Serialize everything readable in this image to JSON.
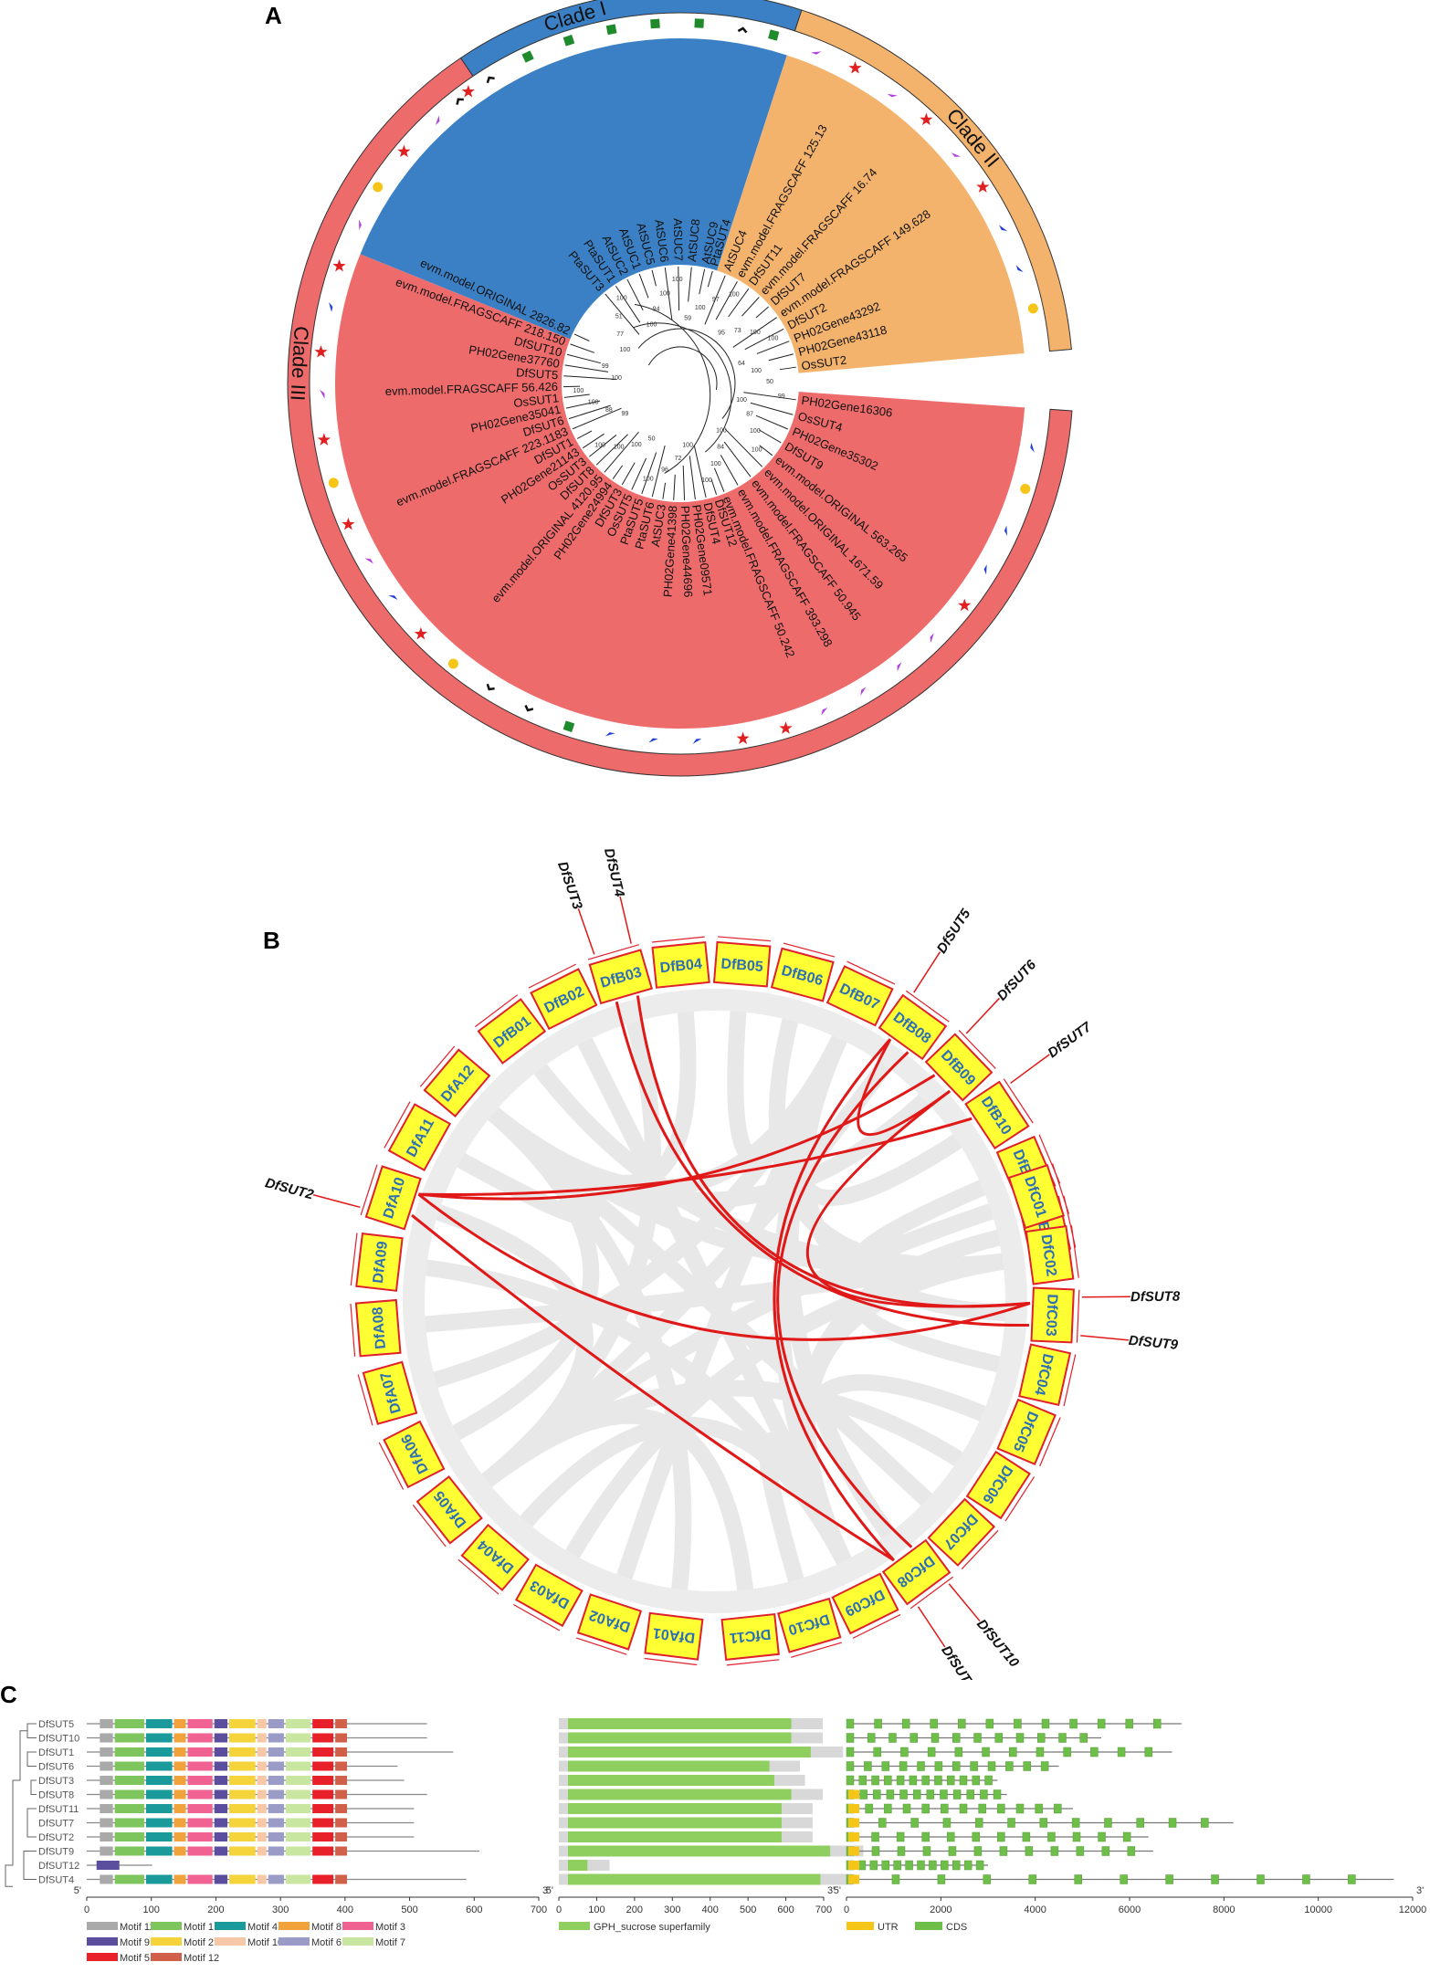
{
  "figure": {
    "panelA": {
      "letter": "A",
      "clades": [
        {
          "name": "Clade I",
          "color": "#3b80c4"
        },
        {
          "name": "Clade II",
          "color": "#f4b36d"
        },
        {
          "name": "Clade III",
          "color": "#ee6b6b"
        }
      ],
      "clade_order_ids": [
        "clade1",
        "clade2",
        "clade3"
      ],
      "leaves_clade1": [
        "AtSUC9",
        "AtSUC8",
        "AtSUC7",
        "AtSUC6",
        "AtSUC5",
        "AtSUC1",
        "AtSUC2",
        "PtaSUT1",
        "PtaSUT3"
      ],
      "leaves_clade2": [
        "PtaSUT4",
        "AtSUC4",
        "evm.model.FRAGSCAFF 125.13",
        "DfSUT11",
        "evm.model.FRAGSCAFF 16.74",
        "DfSUT7",
        "evm.model.FRAGSCAFF 149.628",
        "DfSUT2",
        "PH02Gene43292",
        "PH02Gene43118",
        "OsSUT2"
      ],
      "leaves_clade3_upper": [
        "evm.model.ORIGINAL 2826.82",
        "evm.model.FRAGSCAFF 218.150",
        "DfSUT10",
        "PH02Gene37760",
        "DfSUT5",
        "evm.model.FRAGSCAFF 56.426",
        "OsSUT1",
        "PH02Gene35041",
        "DfSUT6",
        "evm.model.FRAGSCAFF 223.1183",
        "DfSUT1",
        "PH02Gene21143",
        "OsSUT3",
        "DfSUT8",
        "evm.model.ORIGINAL 4120.95",
        "PH02Gene24994",
        "DfSUT3",
        "OsSUT5",
        "PtaSUT5",
        "PtaSUT6",
        "AtSUC3",
        "PH02Gene41398",
        "PH02Gene44696",
        "PH02Gene09571",
        "DfSUT4",
        "DfSUT12"
      ],
      "leaves_clade3_lower": [
        "evm.model.FRAGSCAFF 50.242",
        "evm.model.FRAGSCAFF 393.298",
        "evm.model.FRAGSCAFF 50.945",
        "evm.model.ORIGINAL 1671.59",
        "evm.model.ORIGINAL 563.265",
        "DfSUT9",
        "PH02Gene35302",
        "OsSUT4",
        "PH02Gene16306"
      ],
      "bootstrap_values": [
        "100",
        "77",
        "51",
        "100",
        "100",
        "94",
        "100",
        "100",
        "59",
        "100",
        "97",
        "100",
        "95",
        "73",
        "100",
        "100",
        "64",
        "100",
        "50",
        "99",
        "100",
        "87",
        "100",
        "100",
        "100",
        "84",
        "100",
        "100",
        "100",
        "72",
        "96",
        "100",
        "50",
        "100",
        "100",
        "100",
        "99",
        "88",
        "100",
        "100",
        "100",
        "99"
      ],
      "marker_legend": {
        "circle": "#f5c518",
        "star": "#e02020",
        "triangle_blue": "#1f3fd6",
        "triangle_purple": "#b040e0",
        "square": "#1e8a2c",
        "chevron": "#111111"
      }
    },
    "panelB": {
      "letter": "B",
      "chromosomes": [
        "DfA01",
        "DfA02",
        "DfA03",
        "DfA04",
        "DfA05",
        "DfA06",
        "DfA07",
        "DfA08",
        "DfA09",
        "DfA10",
        "DfA11",
        "DfA12",
        "DfB01",
        "DfB02",
        "DfB03",
        "DfB04",
        "DfB05",
        "DfB06",
        "DfB07",
        "DfB08",
        "DfB09",
        "DfB10",
        "DfB11",
        "DfB12",
        "DfC01",
        "DfC02",
        "DfC03",
        "DfC04",
        "DfC05",
        "DfC06",
        "DfC07",
        "DfC08",
        "DfC09",
        "DfC10",
        "DfC11"
      ],
      "gene_labels": [
        {
          "name": "DfSUT3",
          "chr": "DfB03"
        },
        {
          "name": "DfSUT4",
          "chr": "DfB03"
        },
        {
          "name": "DfSUT5",
          "chr": "DfB08"
        },
        {
          "name": "DfSUT6",
          "chr": "DfB09"
        },
        {
          "name": "DfSUT7",
          "chr": "DfB10"
        },
        {
          "name": "DfSUT2",
          "chr": "DfA10"
        },
        {
          "name": "DfSUT8",
          "chr": "DfC03"
        },
        {
          "name": "DfSUT9",
          "chr": "DfC03"
        },
        {
          "name": "DfSUT10",
          "chr": "DfC08"
        },
        {
          "name": "DfSUT11",
          "chr": "DfC08"
        }
      ],
      "colors": {
        "chromosome_fill": "#ffff33",
        "chromosome_stroke": "#e0202a",
        "label": "#2d6fb3",
        "link": "#e01818",
        "background_link": "#e6e6e6"
      }
    },
    "panelC": {
      "letter": "C",
      "genes": [
        "DfSUT5",
        "DfSUT10",
        "DfSUT1",
        "DfSUT6",
        "DfSUT3",
        "DfSUT8",
        "DfSUT11",
        "DfSUT7",
        "DfSUT2",
        "DfSUT9",
        "DfSUT12",
        "DfSUT4"
      ],
      "motif_axis": {
        "ticks": [
          "0",
          "100",
          "200",
          "300",
          "400",
          "500",
          "600",
          "700"
        ],
        "left": "5'",
        "right": "3'"
      },
      "domain_axis": {
        "ticks": [
          "0",
          "100",
          "200",
          "300",
          "400",
          "500",
          "600",
          "700"
        ],
        "left": "5'",
        "right": "3'"
      },
      "gene_axis": {
        "ticks": [
          "0",
          "2000",
          "4000",
          "6000",
          "8000",
          "10000",
          "12000"
        ],
        "left": "5'",
        "right": "3'"
      },
      "motif_legend": [
        {
          "label": "Motif 11",
          "color": "#a9a9a9"
        },
        {
          "label": "Motif 1",
          "color": "#7dc55c"
        },
        {
          "label": "Motif 4",
          "color": "#1a9a9a"
        },
        {
          "label": "Motif 8",
          "color": "#f2a23a"
        },
        {
          "label": "Motif 3",
          "color": "#f06292"
        },
        {
          "label": "Motif 9",
          "color": "#5c4e9e"
        },
        {
          "label": "Motif 2",
          "color": "#f5d33a"
        },
        {
          "label": "Motif 10",
          "color": "#f7c8a8"
        },
        {
          "label": "Motif 6",
          "color": "#9b9bc8"
        },
        {
          "label": "Motif 7",
          "color": "#c8e6a0"
        },
        {
          "label": "Motif 5",
          "color": "#e8202a"
        },
        {
          "label": "Motif 12",
          "color": "#d0604a"
        }
      ],
      "domain_legend": {
        "label": "GPH_sucrose superfamily",
        "color": "#8fcf5f"
      },
      "gene_legend": [
        {
          "label": "UTR",
          "color": "#f5c518"
        },
        {
          "label": "CDS",
          "color": "#6ebe4a"
        }
      ]
    }
  }
}
